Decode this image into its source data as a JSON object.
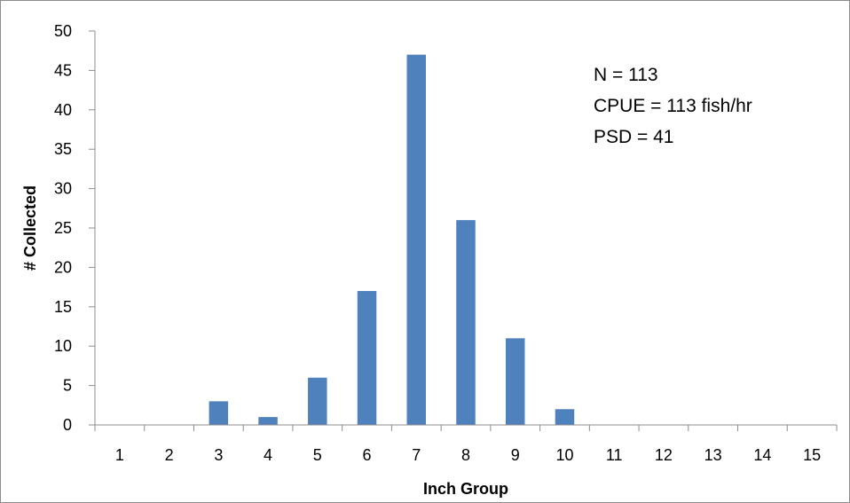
{
  "chart_data": {
    "type": "bar",
    "categories": [
      "1",
      "2",
      "3",
      "4",
      "5",
      "6",
      "7",
      "8",
      "9",
      "10",
      "11",
      "12",
      "13",
      "14",
      "15"
    ],
    "values": [
      0,
      0,
      3,
      1,
      6,
      17,
      47,
      26,
      11,
      2,
      0,
      0,
      0,
      0,
      0
    ],
    "title": "",
    "xlabel": "Inch Group",
    "ylabel": "# Collected",
    "ylim": [
      0,
      50
    ],
    "yticks": [
      0,
      5,
      10,
      15,
      20,
      25,
      30,
      35,
      40,
      45,
      50
    ],
    "grid": false,
    "legend": "none",
    "bar_color": "#4f81bd",
    "annotations": [
      "N = 113",
      "CPUE = 113 fish/hr",
      "PSD = 41"
    ]
  }
}
